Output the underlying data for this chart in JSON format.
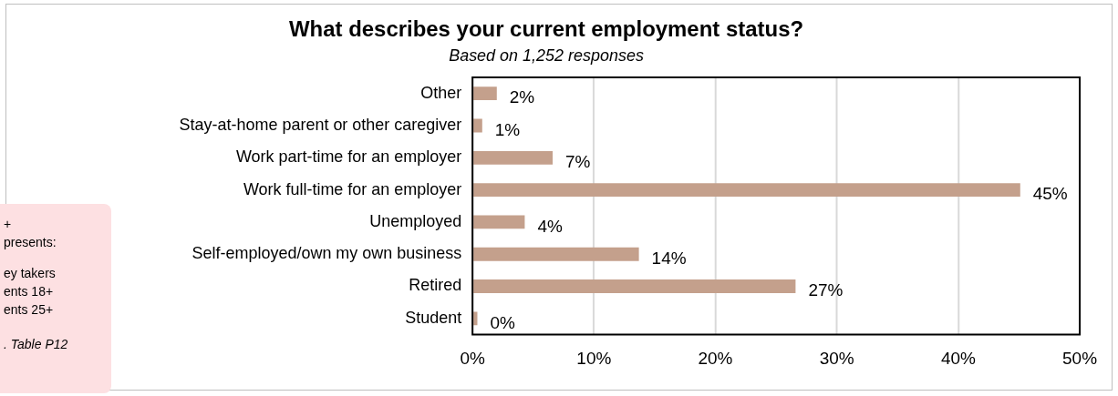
{
  "chart_data": {
    "type": "bar",
    "orientation": "horizontal",
    "title": "What describes your current employment status?",
    "subtitle": "Based on 1,252 responses",
    "categories": [
      "Other",
      "Stay-at-home parent or other caregiver",
      "Work part-time for an employer",
      "Work full-time for an employer",
      "Unemployed",
      "Self-employed/own my own business",
      "Retired",
      "Student"
    ],
    "values": [
      2.0,
      0.8,
      6.6,
      45.1,
      4.3,
      13.7,
      26.6,
      0.4
    ],
    "value_labels": [
      "2%",
      "1%",
      "7%",
      "45%",
      "4%",
      "14%",
      "27%",
      "0%"
    ],
    "color": "#c4a08c",
    "xlim": [
      0,
      50
    ],
    "xticks": [
      {
        "value": 0,
        "label": "0%"
      },
      {
        "value": 10,
        "label": "10%"
      },
      {
        "value": 20,
        "label": "20%"
      },
      {
        "value": 30,
        "label": "30%"
      },
      {
        "value": 40,
        "label": "40%"
      },
      {
        "value": 50,
        "label": "50%"
      }
    ],
    "grid": "x",
    "legend": false,
    "annotations": [
      "+",
      "presents:",
      "ey takers",
      "ents 18+",
      "ents 25+",
      ". Table P12"
    ]
  }
}
